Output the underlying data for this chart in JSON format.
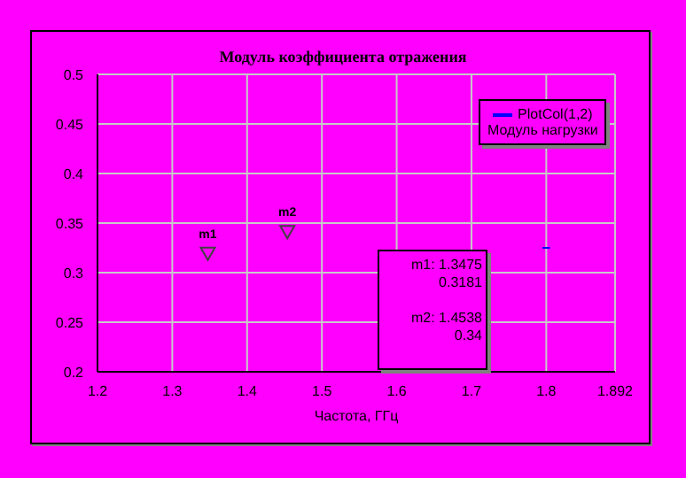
{
  "chart_data": {
    "type": "line",
    "title": "Модуль коэффициента отражения",
    "xlabel": "Частота, ГГц",
    "xlim": [
      1.2,
      1.892
    ],
    "xticks": [
      1.2,
      1.3,
      1.4,
      1.5,
      1.6,
      1.7,
      1.8,
      1.892
    ],
    "ylim": [
      0.2,
      0.5
    ],
    "yticks": [
      0.2,
      0.25,
      0.3,
      0.35,
      0.4,
      0.45,
      0.5
    ],
    "grid": true,
    "legend": "top right",
    "legend_title": "Модуль нагрузки",
    "series": [
      {
        "name": "PlotCol(1,2)",
        "color": "#0000ff",
        "x": [
          1.795,
          1.805
        ],
        "values": [
          0.325,
          0.325
        ]
      },
      {
        "type": "scatter",
        "color": "#404040",
        "marker": "triangle",
        "x": [
          1.3475,
          1.4538
        ],
        "values": [
          0.3181,
          0.34
        ],
        "value_labels": [
          "m1",
          "m2"
        ]
      }
    ],
    "annotations": [
      "m1: 1.3475",
      "0.3181",
      "m2: 1.4538",
      "0.34"
    ]
  }
}
